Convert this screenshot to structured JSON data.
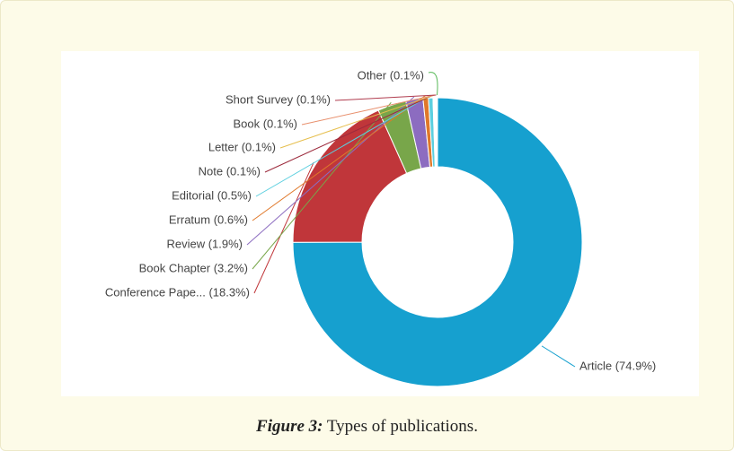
{
  "chart_data": {
    "type": "donut",
    "categories": [
      "Article (74.9%)",
      "Conference Pape... (18.3%)",
      "Book Chapter (3.2%)",
      "Review (1.9%)",
      "Erratum (0.6%)",
      "Editorial (0.5%)",
      "Note (0.1%)",
      "Letter (0.1%)",
      "Book (0.1%)",
      "Short Survey (0.1%)",
      "Other (0.1%)"
    ],
    "values": [
      74.9,
      18.3,
      3.2,
      1.9,
      0.6,
      0.5,
      0.1,
      0.1,
      0.1,
      0.1,
      0.1
    ],
    "colors": [
      "#16a0cf",
      "#c0363a",
      "#78a64a",
      "#8c6cc0",
      "#e0782a",
      "#5ccfdf",
      "#9c2a3c",
      "#e6bf4e",
      "#e8906e",
      "#b03c4e",
      "#56b856"
    ]
  },
  "caption": {
    "label": "Figure 3:",
    "text": " Types of publications."
  }
}
